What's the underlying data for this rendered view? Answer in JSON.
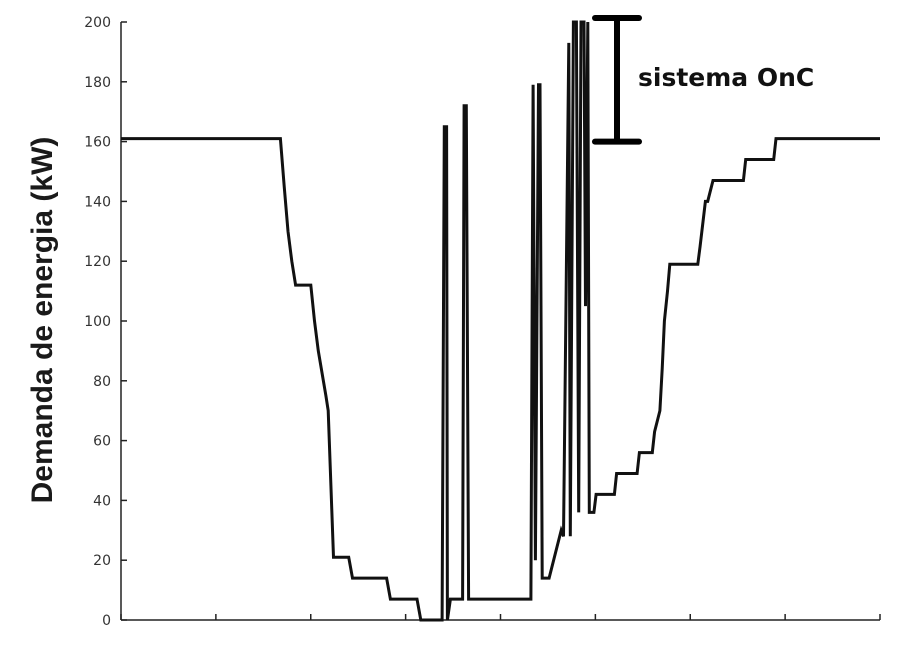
{
  "chart_data": {
    "type": "line",
    "ylabel": "Demanda de energia (kW)",
    "xlabel": "",
    "ylim": [
      0,
      200
    ],
    "xlim": [
      0,
      100
    ],
    "yticks": [
      "0",
      "20",
      "40",
      "60",
      "80",
      "100",
      "120",
      "140",
      "160",
      "180",
      "200"
    ],
    "xtick_count": 9,
    "grid": false,
    "line_color": "#111111",
    "series": [
      {
        "x": [
          0,
          21,
          21.5,
          22,
          22.5,
          23,
          23.5,
          24,
          25,
          25.5,
          26,
          27,
          27.3,
          28,
          30,
          30.5,
          33,
          35,
          35.5,
          39,
          39.5,
          42,
          42.3,
          42.6,
          42.9,
          43,
          43.4,
          45,
          45.2,
          45.5,
          45.8,
          46,
          46.4,
          54,
          54.3,
          54.6,
          55,
          55.2,
          55.5,
          55.8,
          56,
          56.4,
          58,
          58.3,
          59,
          59.2,
          59.6,
          60,
          60.3,
          60.6,
          61,
          61.2,
          61.5,
          61.7,
          62,
          62.3,
          62.6,
          65,
          65.3,
          68,
          68.3,
          70,
          70.3,
          71,
          71.3,
          71.6,
          72,
          72.3,
          72.6,
          73,
          73.3,
          76,
          76.3,
          77,
          77.3,
          78,
          78.3,
          82,
          82.3,
          86,
          86.3,
          91,
          91.3,
          100
        ],
        "y": [
          161,
          161,
          145,
          130,
          120,
          112,
          112,
          112,
          112,
          100,
          90,
          75,
          70,
          21,
          21,
          14,
          14,
          14,
          7,
          7,
          0,
          0,
          0,
          165,
          165,
          0,
          7,
          7,
          172,
          172,
          7,
          7,
          7,
          7,
          179,
          20,
          179,
          179,
          14,
          14,
          14,
          14,
          30,
          28,
          193,
          28,
          200,
          200,
          36,
          200,
          200,
          105,
          200,
          36,
          36,
          36,
          42,
          42,
          49,
          49,
          56,
          56,
          63,
          70,
          84,
          100,
          110,
          119,
          119,
          119,
          119,
          119,
          125,
          140,
          140,
          147,
          147,
          147,
          154,
          154,
          161,
          161,
          161,
          161
        ]
      }
    ],
    "annotation": {
      "label": "sistema OnC",
      "range": [
        160,
        200
      ]
    }
  }
}
